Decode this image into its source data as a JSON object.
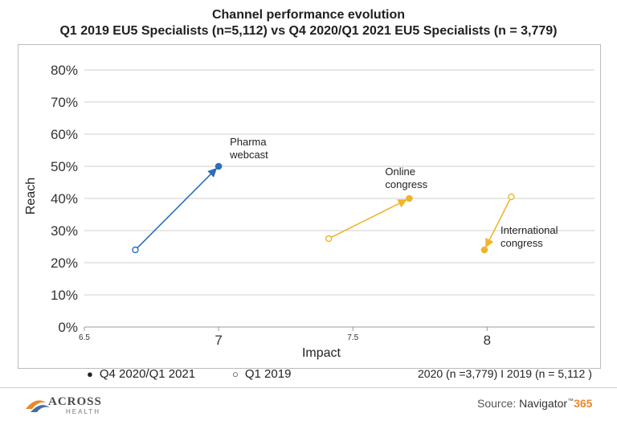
{
  "chart_data": {
    "type": "scatter",
    "title": "Channel performance evolution",
    "subtitle": "Q1 2019 EU5 Specialists (n=5,112)  vs Q4 2020/Q1 2021 EU5 Specialists (n = 3,779)",
    "xlabel": "Impact",
    "ylabel": "Reach",
    "xlim": [
      6.5,
      8.4
    ],
    "ylim": [
      0,
      80
    ],
    "x_ticks": [
      {
        "value": 6.5,
        "label": "6.5",
        "size": "small"
      },
      {
        "value": 7,
        "label": "7",
        "size": "large"
      },
      {
        "value": 7.5,
        "label": "7.5",
        "size": "small"
      },
      {
        "value": 8,
        "label": "8",
        "size": "large"
      }
    ],
    "y_ticks": [
      0,
      10,
      20,
      30,
      40,
      50,
      60,
      70,
      80
    ],
    "y_tick_labels": [
      "0%",
      "10%",
      "20%",
      "30%",
      "40%",
      "50%",
      "60%",
      "70%",
      "80%"
    ],
    "grid": true,
    "series": [
      {
        "name": "Pharma webcast",
        "label_lines": [
          "Pharma",
          "webcast"
        ],
        "color": "#2d6fb6",
        "from": {
          "period": "Q1 2019",
          "x": 6.69,
          "y": 24
        },
        "to": {
          "period": "Q4 2020/Q1 2021",
          "x": 7.0,
          "y": 50
        }
      },
      {
        "name": "Online congress",
        "label_lines": [
          "Online",
          "congress"
        ],
        "color": "#f0b429",
        "from": {
          "period": "Q1 2019",
          "x": 7.41,
          "y": 27.5
        },
        "to": {
          "period": "Q4 2020/Q1 2021",
          "x": 7.71,
          "y": 40
        }
      },
      {
        "name": "International congress",
        "label_lines": [
          "International",
          "congress"
        ],
        "color": "#f0b429",
        "from": {
          "period": "Q1 2019",
          "x": 8.09,
          "y": 40.5
        },
        "to": {
          "period": "Q4 2020/Q1 2021",
          "x": 7.99,
          "y": 24
        }
      }
    ]
  },
  "legend": {
    "filled_symbol": "●",
    "filled_label": "Q4 2020/Q1 2021",
    "open_symbol": "○",
    "open_label": "Q1 2019"
  },
  "sample_note": "2020 (n =3,779)  I  2019 (n = 5,112 )",
  "footer": {
    "logo_name": "ACROSS",
    "logo_sub": "HEALTH",
    "source_label": "Source:",
    "source_brand": "Navigator",
    "source_tm": "™",
    "source_number": "365"
  },
  "colors": {
    "blue": "#2d6fb6",
    "orange": "#f0b429",
    "grid": "#cfcfcf"
  }
}
